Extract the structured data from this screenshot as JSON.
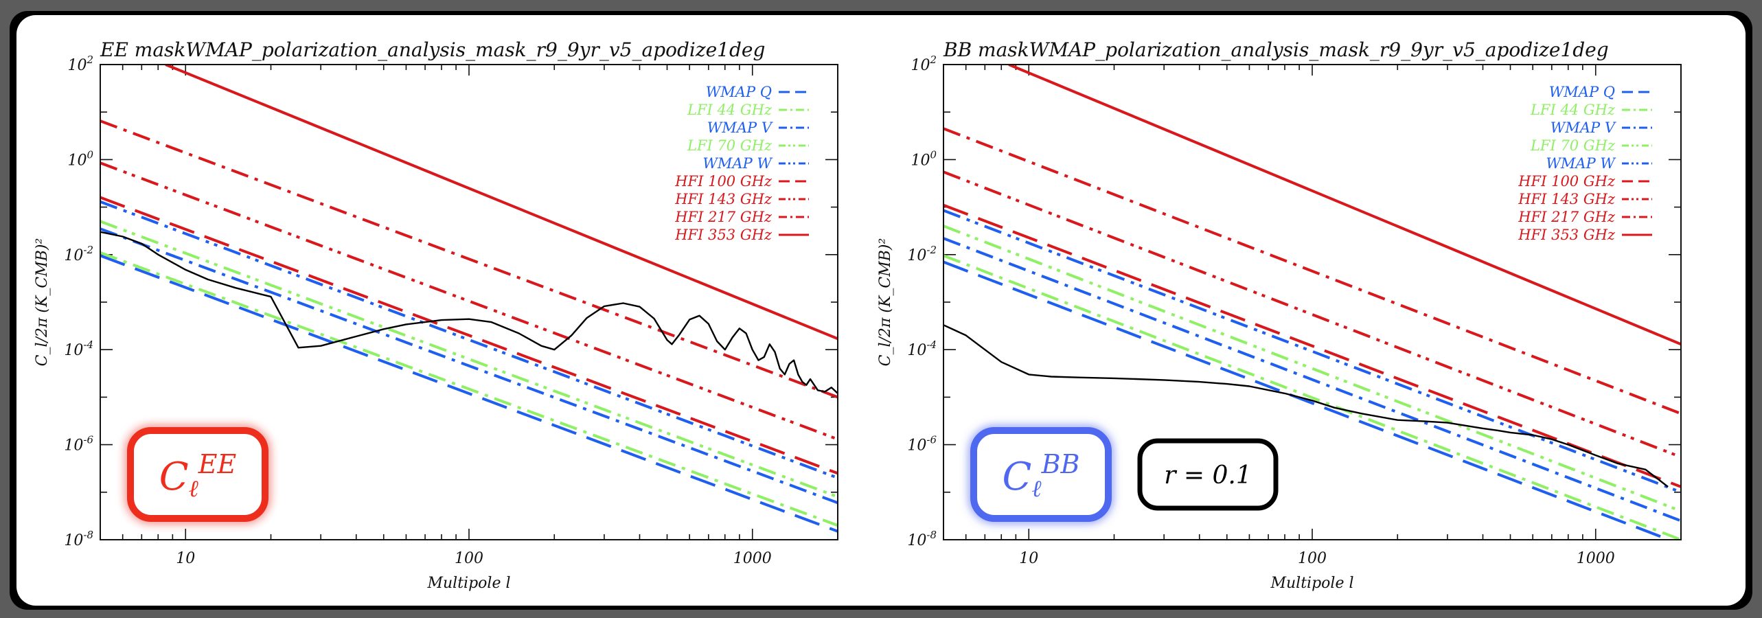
{
  "colors": {
    "wmap": "#1f5ff0",
    "lfi": "#8ff065",
    "hfi": "#d8181c",
    "cmb": "#000000",
    "ee_badge": "#ee2d1d",
    "bb_badge": "#5068f0"
  },
  "legend_entries": [
    {
      "label": "WMAP Q",
      "group": "wmap",
      "dash": "long"
    },
    {
      "label": "LFI 44 GHz",
      "group": "lfi",
      "dash": "dashdot"
    },
    {
      "label": "WMAP V",
      "group": "wmap",
      "dash": "dashdot"
    },
    {
      "label": "LFI 70 GHz",
      "group": "lfi",
      "dash": "dashdotdot"
    },
    {
      "label": "WMAP W",
      "group": "wmap",
      "dash": "dashdotdot"
    },
    {
      "label": "HFI 100 GHz",
      "group": "hfi",
      "dash": "long"
    },
    {
      "label": "HFI 143 GHz",
      "group": "hfi",
      "dash": "dashdotdot"
    },
    {
      "label": "HFI 217 GHz",
      "group": "hfi",
      "dash": "dashdot"
    },
    {
      "label": "HFI 353 GHz",
      "group": "hfi",
      "dash": "solid"
    }
  ],
  "chart_data": [
    {
      "type": "line",
      "title": "EE maskWMAP_polarization_analysis_mask_r9_9yr_v5_apodize1deg",
      "xlabel": "Multipole l",
      "ylabel": "C_l/2π (K_CMB)²",
      "xscale": "log",
      "yscale": "log",
      "xlim": [
        5,
        2000
      ],
      "ylim": [
        1e-08,
        100
      ],
      "xticks": [
        {
          "v": 10,
          "label": "10"
        },
        {
          "v": 100,
          "label": "100"
        },
        {
          "v": 1000,
          "label": "1000"
        }
      ],
      "yticks": [
        {
          "v": 100,
          "base": "10",
          "exp": "2"
        },
        {
          "v": 1,
          "base": "10",
          "exp": "0"
        },
        {
          "v": 0.01,
          "base": "10",
          "exp": "-2"
        },
        {
          "v": 0.0001,
          "base": "10",
          "exp": "-4"
        },
        {
          "v": 1e-06,
          "base": "10",
          "exp": "-6"
        },
        {
          "v": 1e-08,
          "base": "10",
          "exp": "-8"
        }
      ],
      "legend_position": "top-right",
      "badge": {
        "main": "C",
        "sub": "ℓ",
        "sup": "EE",
        "color_key": "ee_badge"
      },
      "series": [
        {
          "name": "WMAP Q",
          "x": [
            5,
            2000
          ],
          "y": [
            0.0095,
            1.5e-08
          ]
        },
        {
          "name": "LFI 44 GHz",
          "x": [
            5,
            2000
          ],
          "y": [
            0.011,
            2e-08
          ]
        },
        {
          "name": "WMAP V",
          "x": [
            5,
            2000
          ],
          "y": [
            0.035,
            6e-08
          ]
        },
        {
          "name": "LFI 70 GHz",
          "x": [
            5,
            2000
          ],
          "y": [
            0.05,
            8e-08
          ]
        },
        {
          "name": "WMAP W",
          "x": [
            5,
            2000
          ],
          "y": [
            0.13,
            2e-07
          ]
        },
        {
          "name": "HFI 100 GHz",
          "x": [
            5,
            2000
          ],
          "y": [
            0.16,
            2.5e-07
          ]
        },
        {
          "name": "HFI 143 GHz",
          "x": [
            5,
            2000
          ],
          "y": [
            0.85,
            1.3e-06
          ]
        },
        {
          "name": "HFI 217 GHz",
          "x": [
            5,
            2000
          ],
          "y": [
            6.5,
            1e-05
          ]
        },
        {
          "name": "HFI 353 GHz",
          "x": [
            8.5,
            2000
          ],
          "y": [
            100,
            0.00017
          ]
        },
        {
          "name": "CMB",
          "x": [
            5,
            6,
            7,
            8,
            10,
            12,
            15,
            20,
            25,
            30,
            40,
            50,
            60,
            80,
            100,
            120,
            150,
            180,
            200,
            230,
            260,
            300,
            350,
            400,
            450,
            500,
            520,
            550,
            600,
            650,
            700,
            750,
            800,
            850,
            900,
            950,
            1000,
            1050,
            1100,
            1150,
            1200,
            1250,
            1300,
            1350,
            1400,
            1450,
            1500,
            1550,
            1600,
            1700,
            1800,
            1900,
            2000
          ],
          "y": [
            0.03,
            0.024,
            0.017,
            0.01,
            0.0048,
            0.003,
            0.002,
            0.0013,
            0.00011,
            0.00012,
            0.00019,
            0.00027,
            0.00034,
            0.00042,
            0.00044,
            0.00038,
            0.00022,
            0.00012,
            0.0001,
            0.0002,
            0.00046,
            0.00082,
            0.00095,
            0.0008,
            0.00045,
            0.00016,
            0.00013,
            0.0002,
            0.00043,
            0.00052,
            0.00035,
            0.00015,
            0.0001,
            0.00018,
            0.00028,
            0.00022,
            0.0001,
            6e-05,
            7e-05,
            0.00013,
            9e-05,
            4e-05,
            3e-05,
            5e-05,
            6e-05,
            3e-05,
            2.1e-05,
            1.8e-05,
            2.4e-05,
            1.4e-05,
            1.3e-05,
            1.6e-05,
            1.2e-05
          ]
        }
      ]
    },
    {
      "type": "line",
      "title": "BB maskWMAP_polarization_analysis_mask_r9_9yr_v5_apodize1deg",
      "xlabel": "Multipole l",
      "ylabel": "C_l/2π (K_CMB)²",
      "xscale": "log",
      "yscale": "log",
      "xlim": [
        5,
        2000
      ],
      "ylim": [
        1e-08,
        100
      ],
      "xticks": [
        {
          "v": 10,
          "label": "10"
        },
        {
          "v": 100,
          "label": "100"
        },
        {
          "v": 1000,
          "label": "1000"
        }
      ],
      "yticks": [
        {
          "v": 100,
          "base": "10",
          "exp": "2"
        },
        {
          "v": 1,
          "base": "10",
          "exp": "0"
        },
        {
          "v": 0.01,
          "base": "10",
          "exp": "-2"
        },
        {
          "v": 0.0001,
          "base": "10",
          "exp": "-4"
        },
        {
          "v": 1e-06,
          "base": "10",
          "exp": "-6"
        },
        {
          "v": 1e-08,
          "base": "10",
          "exp": "-8"
        }
      ],
      "legend_position": "top-right",
      "badge": {
        "main": "C",
        "sub": "ℓ",
        "sup": "BB",
        "color_key": "bb_badge"
      },
      "annotation": "r = 0.1",
      "series": [
        {
          "name": "WMAP Q",
          "x": [
            5,
            2000
          ],
          "y": [
            0.007,
            8e-09
          ]
        },
        {
          "name": "LFI 44 GHz",
          "x": [
            5,
            2000
          ],
          "y": [
            0.0095,
            1e-08
          ]
        },
        {
          "name": "WMAP V",
          "x": [
            5,
            2000
          ],
          "y": [
            0.022,
            2.5e-08
          ]
        },
        {
          "name": "LFI 70 GHz",
          "x": [
            5,
            2000
          ],
          "y": [
            0.04,
            4e-08
          ]
        },
        {
          "name": "WMAP W",
          "x": [
            5,
            2000
          ],
          "y": [
            0.085,
            1e-07
          ]
        },
        {
          "name": "HFI 100 GHz",
          "x": [
            5,
            2000
          ],
          "y": [
            0.11,
            1.3e-07
          ]
        },
        {
          "name": "HFI 143 GHz",
          "x": [
            5,
            2000
          ],
          "y": [
            0.55,
            5.5e-07
          ]
        },
        {
          "name": "HFI 217 GHz",
          "x": [
            5,
            2000
          ],
          "y": [
            4.5,
            4.5e-06
          ]
        },
        {
          "name": "HFI 353 GHz",
          "x": [
            8.5,
            2000
          ],
          "y": [
            100,
            0.00013
          ]
        },
        {
          "name": "CMB",
          "x": [
            5,
            6,
            7,
            8,
            10,
            12,
            15,
            20,
            30,
            40,
            50,
            60,
            80,
            100,
            120,
            150,
            200,
            250,
            300,
            350,
            400,
            450,
            500,
            600,
            700,
            800,
            1000,
            1200,
            1500,
            1800
          ],
          "y": [
            0.00033,
            0.0002,
            0.0001,
            5.5e-05,
            3e-05,
            2.7e-05,
            2.6e-05,
            2.5e-05,
            2.3e-05,
            2.1e-05,
            1.9e-05,
            1.7e-05,
            1.2e-05,
            8.5e-06,
            6e-06,
            4.5e-06,
            3.3e-06,
            3.1e-06,
            2.9e-06,
            2.5e-06,
            2.2e-06,
            2e-06,
            1.8e-06,
            1.6e-06,
            1.3e-06,
            1e-06,
            6e-07,
            4e-07,
            3e-07,
            1.3e-07
          ]
        }
      ]
    }
  ]
}
